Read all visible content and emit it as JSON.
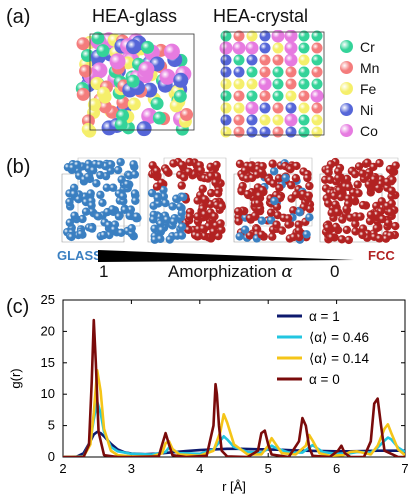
{
  "panel_a": {
    "label": "(a)",
    "glass_title": "HEA-glass",
    "crystal_title": "HEA-crystal",
    "legend": [
      {
        "label": "Cr",
        "color": "#34d399"
      },
      {
        "label": "Mn",
        "color": "#f47c7c"
      },
      {
        "label": "Fe",
        "color": "#f5ef6b"
      },
      {
        "label": "Ni",
        "color": "#5566d8"
      },
      {
        "label": "Co",
        "color": "#e67be0"
      }
    ]
  },
  "panel_b": {
    "label": "(b)",
    "glass_label": "GLASS",
    "fcc_label": "FCC",
    "left_value": "1",
    "right_value": "0",
    "axis_label": "Amorphization",
    "axis_symbol": "α",
    "glass_color": "#3a7fc1",
    "fcc_color": "#b22222"
  },
  "panel_c": {
    "label": "(c)"
  },
  "chart_data": {
    "type": "line",
    "title": "",
    "xlabel": "r [Å]",
    "ylabel": "g(r)",
    "xlim": [
      2,
      7
    ],
    "ylim": [
      0,
      25
    ],
    "xticks": [
      2,
      3,
      4,
      5,
      6,
      7
    ],
    "yticks": [
      0,
      5,
      10,
      15,
      20,
      25
    ],
    "grid": false,
    "legend_position": "top-right",
    "series": [
      {
        "name": "α  = 1",
        "color": "#0d1a6e",
        "x": [
          2.0,
          2.2,
          2.3,
          2.4,
          2.45,
          2.5,
          2.55,
          2.6,
          2.7,
          2.8,
          2.9,
          3.0,
          3.2,
          3.4,
          3.6,
          3.8,
          4.0,
          4.2,
          4.4,
          4.6,
          4.8,
          5.0,
          5.2,
          5.4,
          5.6,
          5.8,
          6.0,
          6.2,
          6.4,
          6.6,
          6.8,
          7.0
        ],
        "values": [
          0.0,
          0.05,
          0.6,
          2.5,
          3.6,
          4.0,
          3.8,
          3.3,
          2.1,
          1.2,
          0.75,
          0.55,
          0.45,
          0.55,
          0.75,
          0.95,
          1.1,
          1.2,
          1.3,
          1.3,
          1.25,
          1.2,
          1.15,
          1.05,
          0.98,
          0.95,
          0.9,
          0.9,
          0.95,
          1.0,
          1.0,
          1.0
        ]
      },
      {
        "name": "⟨α⟩ = 0.46",
        "color": "#22c6e0",
        "x": [
          2.0,
          2.3,
          2.4,
          2.45,
          2.5,
          2.55,
          2.6,
          2.7,
          2.8,
          3.0,
          3.3,
          3.5,
          3.55,
          3.6,
          3.7,
          4.0,
          4.2,
          4.3,
          4.35,
          4.4,
          4.5,
          4.7,
          4.9,
          5.0,
          5.05,
          5.1,
          5.3,
          5.5,
          5.6,
          5.65,
          5.7,
          5.8,
          6.0,
          6.2,
          6.3,
          6.5,
          6.6,
          6.7,
          6.75,
          6.8,
          6.9,
          7.0
        ],
        "values": [
          0.0,
          0.1,
          2.5,
          6.0,
          8.8,
          7.0,
          4.0,
          1.6,
          0.9,
          0.5,
          0.4,
          0.8,
          1.5,
          1.2,
          0.6,
          0.5,
          1.2,
          2.6,
          3.3,
          2.8,
          1.6,
          0.8,
          0.7,
          1.3,
          1.8,
          1.5,
          0.7,
          0.7,
          1.5,
          1.9,
          1.5,
          0.8,
          0.5,
          0.6,
          0.8,
          0.7,
          1.5,
          2.6,
          3.1,
          2.8,
          1.5,
          0.8
        ]
      },
      {
        "name": "⟨α⟩ = 0.14",
        "color": "#f5c518",
        "x": [
          2.0,
          2.3,
          2.4,
          2.45,
          2.5,
          2.55,
          2.6,
          2.7,
          2.8,
          3.0,
          3.3,
          3.45,
          3.5,
          3.55,
          3.6,
          3.7,
          4.0,
          4.2,
          4.3,
          4.35,
          4.4,
          4.5,
          4.7,
          4.9,
          5.0,
          5.05,
          5.1,
          5.2,
          5.4,
          5.55,
          5.6,
          5.65,
          5.75,
          5.9,
          6.1,
          6.2,
          6.3,
          6.5,
          6.6,
          6.7,
          6.75,
          6.8,
          6.9,
          7.0
        ],
        "values": [
          0.0,
          0.05,
          2.0,
          7.0,
          13.8,
          10.5,
          4.5,
          1.0,
          0.3,
          0.1,
          0.1,
          0.6,
          2.2,
          2.5,
          1.3,
          0.4,
          0.2,
          1.0,
          4.0,
          6.8,
          5.5,
          2.0,
          0.4,
          0.4,
          1.8,
          3.0,
          2.2,
          0.6,
          0.4,
          1.8,
          3.5,
          2.6,
          0.6,
          0.2,
          0.3,
          0.8,
          0.9,
          0.4,
          1.8,
          4.5,
          5.2,
          3.8,
          1.2,
          0.3
        ]
      },
      {
        "name": "α  = 0",
        "color": "#7a0b0b",
        "x": [
          2.0,
          2.3,
          2.38,
          2.42,
          2.45,
          2.48,
          2.52,
          2.6,
          2.8,
          3.0,
          3.4,
          3.45,
          3.5,
          3.55,
          3.6,
          3.8,
          4.1,
          4.2,
          4.23,
          4.25,
          4.28,
          4.32,
          4.4,
          4.7,
          4.85,
          4.9,
          4.95,
          5.0,
          5.05,
          5.3,
          5.45,
          5.5,
          5.55,
          5.6,
          5.65,
          5.9,
          6.02,
          6.07,
          6.12,
          6.2,
          6.4,
          6.5,
          6.55,
          6.6,
          6.65,
          6.7,
          6.9,
          7.0
        ],
        "values": [
          0.0,
          0.0,
          2.0,
          12.0,
          21.8,
          15.0,
          4.0,
          0.3,
          0.0,
          0.0,
          0.1,
          2.0,
          3.8,
          2.0,
          0.3,
          0.0,
          0.2,
          5.0,
          11.6,
          10.0,
          5.0,
          1.0,
          0.1,
          0.0,
          1.0,
          3.8,
          4.2,
          2.0,
          0.4,
          0.0,
          2.5,
          6.2,
          5.0,
          1.5,
          0.2,
          0.0,
          1.0,
          1.8,
          0.6,
          0.0,
          0.0,
          2.5,
          8.5,
          9.3,
          5.0,
          1.0,
          0.0,
          0.0
        ]
      }
    ]
  }
}
